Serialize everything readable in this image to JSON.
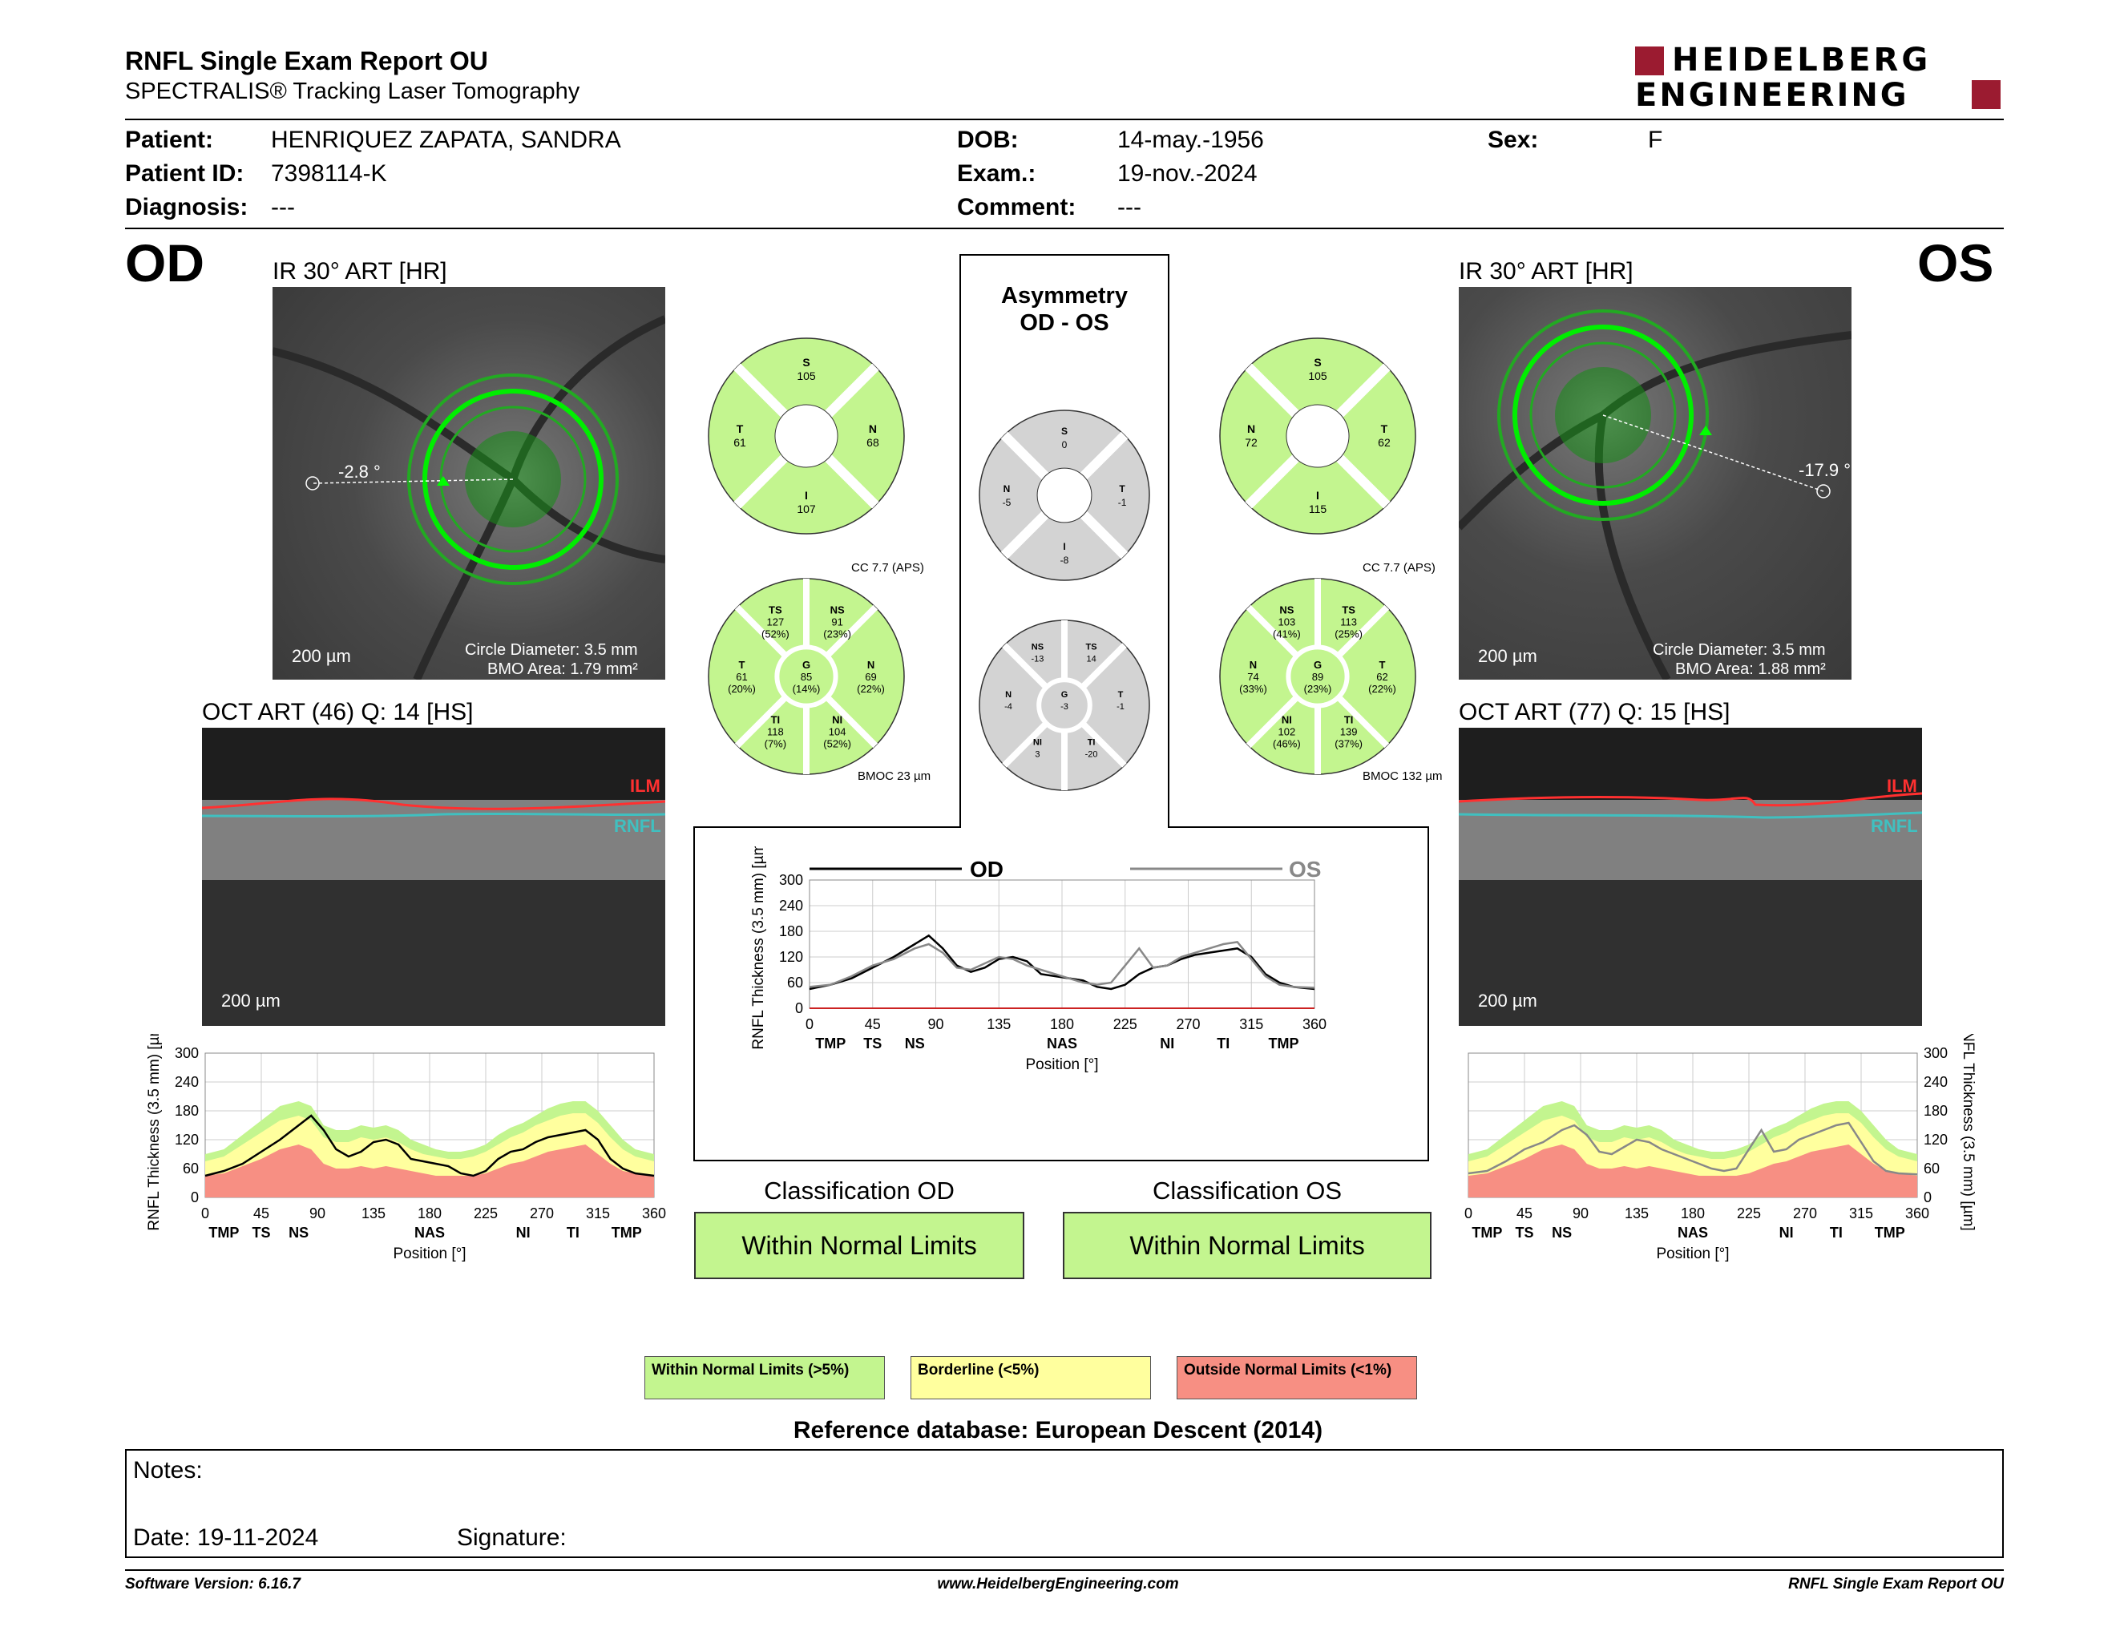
{
  "header": {
    "title": "RNFL Single Exam Report OU",
    "subtitle": "SPECTRALIS® Tracking Laser Tomography",
    "logo_line1": "HEIDELBERG",
    "logo_line2": "ENGINEERING"
  },
  "patient": {
    "name_label": "Patient:",
    "name": "HENRIQUEZ ZAPATA, SANDRA",
    "id_label": "Patient ID:",
    "id": "7398114-K",
    "diag_label": "Diagnosis:",
    "diag": "---",
    "dob_label": "DOB:",
    "dob": "14-may.-1956",
    "exam_label": "Exam.:",
    "exam": "19-nov.-2024",
    "comment_label": "Comment:",
    "comment": "---",
    "sex_label": "Sex:",
    "sex": "F"
  },
  "od": {
    "eye": "OD",
    "ir_title": "IR 30° ART [HR]",
    "angle": "-2.8 °",
    "scale": "200 µm",
    "circle_diameter": "Circle Diameter: 3.5 mm",
    "bmo_area": "BMO Area: 1.79 mm²",
    "oct_title": "OCT ART (46) Q: 14 [HS]",
    "oct_scale": "200 µm",
    "ilm": "ILM",
    "rnfl": "RNFL",
    "sectors4": {
      "S": "105",
      "T": "61",
      "N": "68",
      "I": "107"
    },
    "sectors6": {
      "TS": "127",
      "TS_pct": "(52%)",
      "NS": "91",
      "NS_pct": "(23%)",
      "T": "61",
      "T_pct": "(20%)",
      "G": "85",
      "G_pct": "(14%)",
      "N": "69",
      "N_pct": "(22%)",
      "TI": "118",
      "TI_pct": "(7%)",
      "NI": "104",
      "NI_pct": "(52%)"
    },
    "cc": "CC 7.7 (APS)",
    "bmoc": "BMOC 23 µm",
    "classification_label": "Classification OD",
    "classification": "Within Normal Limits"
  },
  "os": {
    "eye": "OS",
    "ir_title": "IR 30° ART [HR]",
    "angle": "-17.9 °",
    "scale": "200 µm",
    "circle_diameter": "Circle Diameter: 3.5 mm",
    "bmo_area": "BMO Area: 1.88 mm²",
    "oct_title": "OCT ART (77) Q: 15 [HS]",
    "oct_scale": "200 µm",
    "ilm": "ILM",
    "rnfl": "RNFL",
    "sectors4": {
      "S": "105",
      "N": "72",
      "T": "62",
      "I": "115"
    },
    "sectors6": {
      "NS": "103",
      "NS_pct": "(41%)",
      "TS": "113",
      "TS_pct": "(25%)",
      "N": "74",
      "N_pct": "(33%)",
      "G": "89",
      "G_pct": "(23%)",
      "T": "62",
      "T_pct": "(22%)",
      "NI": "102",
      "NI_pct": "(46%)",
      "TI": "139",
      "TI_pct": "(37%)"
    },
    "cc": "CC 7.7 (APS)",
    "bmoc": "BMOC 132 µm",
    "classification_label": "Classification OS",
    "classification": "Within Normal Limits"
  },
  "asymmetry": {
    "title1": "Asymmetry",
    "title2": "OD - OS",
    "sectors4": {
      "S": "0",
      "N": "-5",
      "T": "-1",
      "I": "-8"
    },
    "sectors6": {
      "NS": "-13",
      "TS": "14",
      "N": "-4",
      "G": "-3",
      "T": "-1",
      "NI": "3",
      "TI": "-20"
    }
  },
  "sector_letters": {
    "S": "S",
    "T": "T",
    "N": "N",
    "I": "I",
    "TS": "TS",
    "NS": "NS",
    "TI": "TI",
    "NI": "NI",
    "G": "G"
  },
  "chart_labels": {
    "ylabel": "RNFL Thickness (3.5 mm) [µm]",
    "xlabel": "Position [°]",
    "legend_od": "OD",
    "legend_os": "OS",
    "regions": [
      "TMP",
      "TS",
      "NS",
      "NAS",
      "NI",
      "TI",
      "TMP"
    ]
  },
  "chart_data": {
    "type": "line",
    "x_ticks": [
      0,
      45,
      90,
      135,
      180,
      225,
      270,
      315,
      360
    ],
    "y_ticks": [
      0,
      60,
      120,
      180,
      240,
      300
    ],
    "xlim": [
      0,
      360
    ],
    "ylim": [
      0,
      300
    ],
    "x": [
      0,
      15,
      30,
      45,
      60,
      75,
      85,
      95,
      105,
      115,
      125,
      135,
      145,
      155,
      165,
      175,
      185,
      195,
      205,
      215,
      225,
      235,
      245,
      255,
      265,
      275,
      285,
      295,
      305,
      315,
      325,
      335,
      345,
      360
    ],
    "series": [
      {
        "name": "OD",
        "color": "#000000",
        "values": [
          45,
          55,
          70,
          95,
          120,
          150,
          170,
          140,
          100,
          85,
          95,
          115,
          120,
          110,
          80,
          75,
          70,
          65,
          50,
          45,
          55,
          80,
          95,
          100,
          115,
          125,
          130,
          135,
          140,
          120,
          80,
          60,
          50,
          45
        ]
      },
      {
        "name": "OS",
        "color": "#888888",
        "values": [
          50,
          55,
          75,
          100,
          115,
          140,
          150,
          130,
          95,
          90,
          105,
          120,
          115,
          100,
          90,
          80,
          70,
          60,
          55,
          60,
          100,
          140,
          95,
          100,
          120,
          130,
          140,
          150,
          155,
          115,
          75,
          55,
          50,
          48
        ]
      }
    ],
    "normative_bands": {
      "within_normal_upper": [
        90,
        100,
        130,
        160,
        190,
        200,
        190,
        150,
        140,
        140,
        150,
        145,
        150,
        140,
        120,
        110,
        100,
        95,
        95,
        100,
        110,
        130,
        145,
        155,
        170,
        185,
        195,
        200,
        200,
        180,
        150,
        120,
        100,
        90
      ],
      "borderline_upper": [
        75,
        85,
        110,
        135,
        160,
        170,
        160,
        125,
        115,
        115,
        125,
        120,
        125,
        115,
        100,
        90,
        85,
        80,
        80,
        85,
        95,
        110,
        125,
        135,
        150,
        160,
        170,
        175,
        175,
        155,
        125,
        100,
        85,
        75
      ],
      "outside_upper": [
        45,
        50,
        65,
        80,
        100,
        110,
        100,
        70,
        60,
        60,
        65,
        60,
        65,
        60,
        55,
        50,
        45,
        45,
        45,
        45,
        50,
        60,
        70,
        75,
        85,
        95,
        100,
        105,
        110,
        90,
        70,
        55,
        50,
        45
      ]
    }
  },
  "legend": {
    "wnl": "Within Normal Limits (>5%)",
    "bl": "Borderline (<5%)",
    "onl": "Outside Normal Limits (<1%)",
    "wnl_color": "#c3f58f",
    "bl_color": "#ffff9e",
    "onl_color": "#f78f83"
  },
  "reference": "Reference database: European Descent (2014)",
  "notes": {
    "label": "Notes:",
    "date_label": "Date: 19-11-2024",
    "signature_label": "Signature:"
  },
  "footer": {
    "version": "Software Version: 6.16.7",
    "website": "www.HeidelbergEngineering.com",
    "report": "RNFL Single Exam Report OU"
  }
}
